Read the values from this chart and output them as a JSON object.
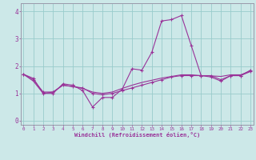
{
  "xlabel": "Windchill (Refroidissement éolien,°C)",
  "bg_color": "#cce8e8",
  "line_color": "#993399",
  "grid_color": "#99cccc",
  "axis_color": "#9999aa",
  "x_ticks": [
    0,
    1,
    2,
    3,
    4,
    5,
    6,
    7,
    8,
    9,
    10,
    11,
    12,
    13,
    14,
    15,
    16,
    17,
    18,
    19,
    20,
    21,
    22,
    23
  ],
  "ylim": [
    -0.15,
    4.3
  ],
  "xlim": [
    -0.3,
    23.3
  ],
  "series1_x": [
    0,
    1,
    2,
    3,
    4,
    5,
    6,
    7,
    8,
    9,
    10,
    11,
    12,
    13,
    14,
    15,
    16,
    17,
    18,
    19,
    20,
    21,
    22,
    23
  ],
  "series1_y": [
    1.7,
    1.55,
    1.0,
    1.0,
    1.35,
    1.3,
    1.1,
    0.5,
    0.85,
    0.85,
    1.15,
    1.9,
    1.85,
    2.5,
    3.65,
    3.7,
    3.85,
    2.75,
    1.65,
    1.6,
    1.45,
    1.65,
    1.65,
    1.85
  ],
  "series2_x": [
    0,
    1,
    2,
    3,
    4,
    5,
    6,
    7,
    8,
    9,
    10,
    11,
    12,
    13,
    14,
    15,
    16,
    17,
    18,
    19,
    20,
    21,
    22,
    23
  ],
  "series2_y": [
    1.7,
    1.5,
    1.05,
    1.05,
    1.3,
    1.25,
    1.2,
    1.0,
    0.95,
    1.0,
    1.1,
    1.2,
    1.3,
    1.4,
    1.5,
    1.6,
    1.65,
    1.65,
    1.65,
    1.65,
    1.5,
    1.65,
    1.65,
    1.8
  ],
  "series3_x": [
    0,
    1,
    2,
    3,
    4,
    5,
    6,
    7,
    8,
    9,
    10,
    11,
    12,
    13,
    14,
    15,
    16,
    17,
    18,
    19,
    20,
    21,
    22,
    23
  ],
  "series3_y": [
    1.7,
    1.45,
    1.0,
    1.05,
    1.3,
    1.25,
    1.18,
    1.05,
    1.0,
    1.05,
    1.18,
    1.3,
    1.4,
    1.48,
    1.56,
    1.62,
    1.68,
    1.68,
    1.65,
    1.64,
    1.62,
    1.68,
    1.68,
    1.82
  ]
}
